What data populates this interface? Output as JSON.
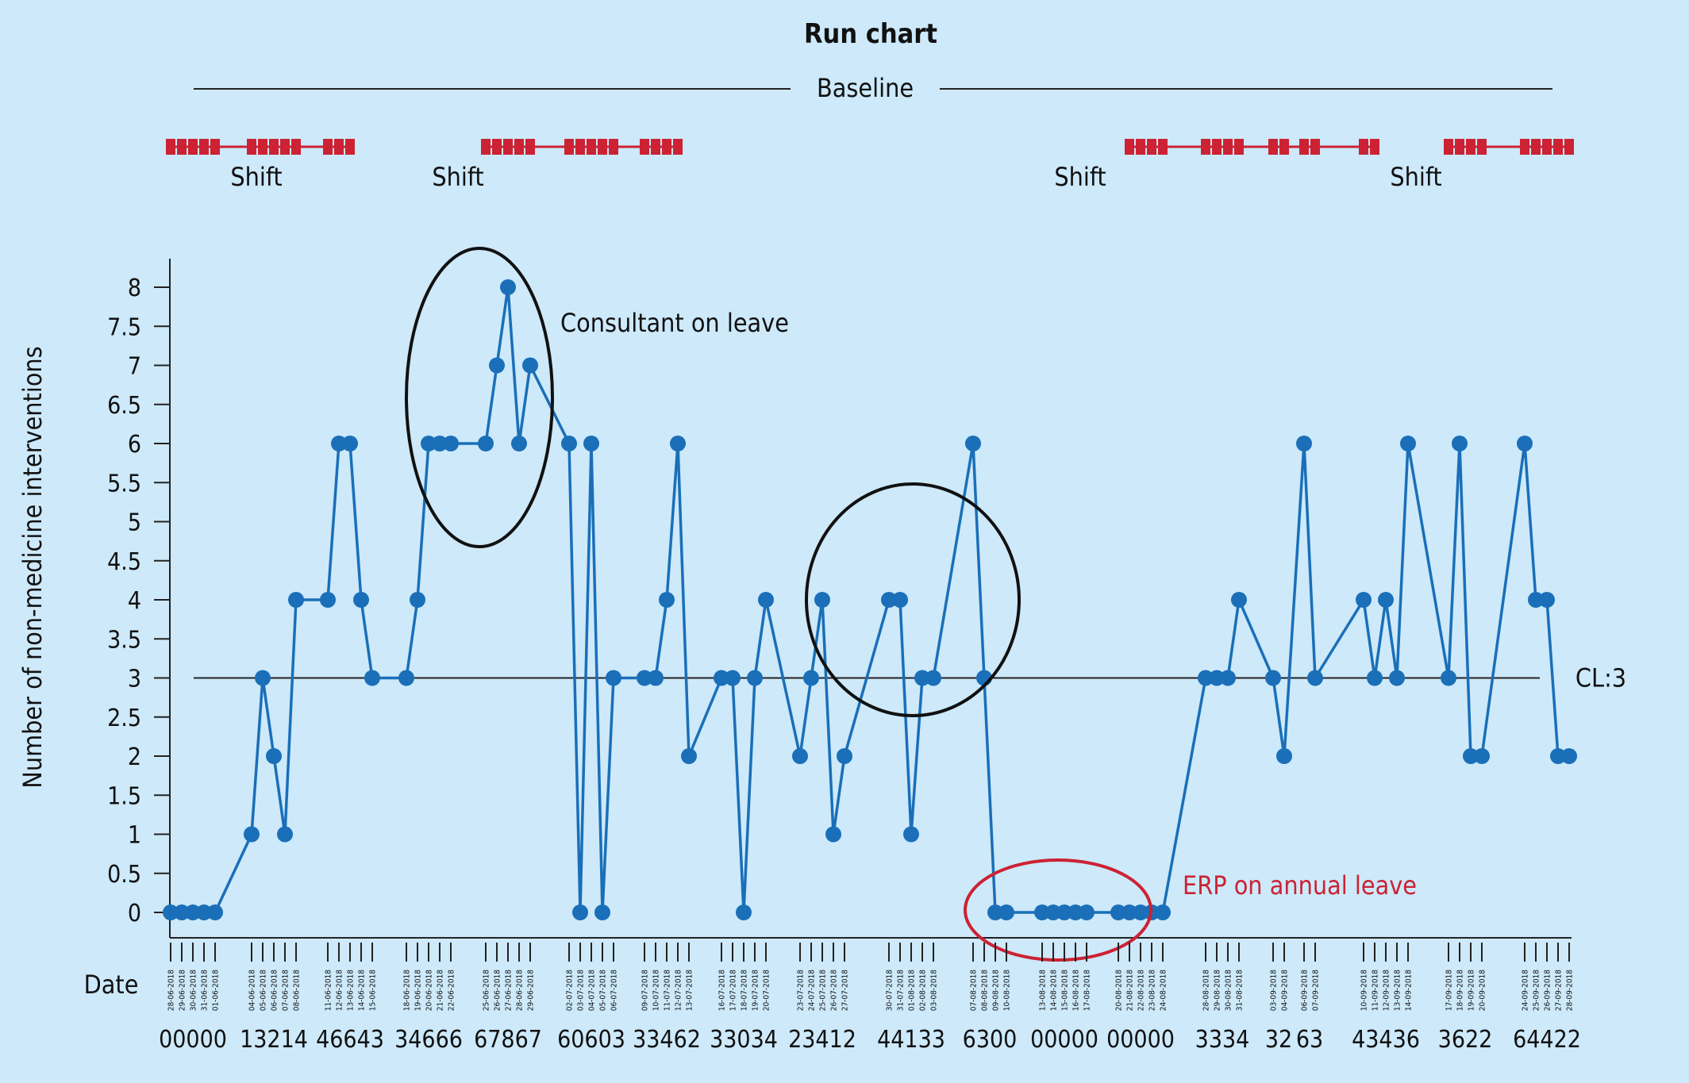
{
  "chart_data": {
    "type": "line",
    "title": "Run chart",
    "xlabel": "Date",
    "ylabel": "Number of non-medicine interventions",
    "ylim": [
      0,
      8
    ],
    "yticks": [
      "8",
      "7.5",
      "7",
      "6.5",
      "6",
      "5.5",
      "5",
      "4.5",
      "4",
      "3.5",
      "3",
      "2.5",
      "2",
      "1.5",
      "1",
      "0.5",
      "0"
    ],
    "baseline_label": "Baseline",
    "centerline": {
      "value": 3,
      "label": "CL:3"
    },
    "shift_label": "Shift",
    "annotations": {
      "consultant": "Consultant on leave",
      "erp": "ERP on annual leave"
    },
    "colors": {
      "line": "#1a6fb8",
      "point": "#1a6fb8",
      "shift": "#cc2233",
      "erp_circle": "#cc2233",
      "background": "#cde9fa"
    },
    "week_groups": [
      {
        "dates": [
          "28-06-2018",
          "29-06-2018",
          "30-06-2018",
          "31-06-2018",
          "01-06-2018"
        ],
        "values": "00000"
      },
      {
        "dates": [
          "04-06-2018",
          "05-06-2018",
          "06-06-2018",
          "07-06-2018",
          "08-06-2018"
        ],
        "values": "13214"
      },
      {
        "dates": [
          "11-06-2018",
          "12-06-2018",
          "13-06-2018",
          "14-06-2018",
          "15-06-2018"
        ],
        "values": "46643"
      },
      {
        "dates": [
          "18-06-2018",
          "19-06-2018",
          "20-06-2018",
          "21-06-2018",
          "22-06-2018"
        ],
        "values": "34666"
      },
      {
        "dates": [
          "25-06-2018",
          "26-06-2018",
          "27-06-2018",
          "28-06-2018",
          "29-06-2018"
        ],
        "values": "67867"
      },
      {
        "dates": [
          "02-07-2018",
          "03-07-2018",
          "04-07-2018",
          "05-07-2018",
          "06-07-2018"
        ],
        "values": "60603"
      },
      {
        "dates": [
          "09-07-2018",
          "10-07-2018",
          "11-07-2018",
          "12-07-2018",
          "13-07-2018"
        ],
        "values": "33462"
      },
      {
        "dates": [
          "16-07-2018",
          "17-07-2018",
          "18-07-2018",
          "19-07-2018",
          "20-07-2018"
        ],
        "values": "33034"
      },
      {
        "dates": [
          "23-07-2018",
          "24-07-2018",
          "25-07-2018",
          "26-07-2018",
          "27-07-2018"
        ],
        "values": "23412"
      },
      {
        "dates": [
          "30-07-2018",
          "31-07-2018",
          "01-08-2018",
          "02-08-2018",
          "03-08-2018"
        ],
        "values": "44133"
      },
      {
        "dates": [
          "07-08-2018",
          "08-08-2018",
          "09-08-2018",
          "10-08-2018"
        ],
        "values": "6300"
      },
      {
        "dates": [
          "13-08-2018",
          "14-08-2018",
          "15-08-2018",
          "16-08-2018",
          "17-08-2018"
        ],
        "values": "00000"
      },
      {
        "dates": [
          "20-08-2018",
          "21-08-2018",
          "22-08-2018",
          "23-08-2018",
          "24-08-2018"
        ],
        "values": "00000"
      },
      {
        "dates": [
          "28-08-2018",
          "29-08-2018",
          "30-08-2018",
          "31-08-2018"
        ],
        "values": "3334"
      },
      {
        "dates": [
          "03-09-2018",
          "04-09-2018"
        ],
        "values": "32"
      },
      {
        "dates": [
          "06-09-2018",
          "07-09-2018"
        ],
        "values": "63"
      },
      {
        "dates": [
          "10-09-2018",
          "11-09-2018",
          "12-09-2018",
          "13-09-2018",
          "14-09-2018"
        ],
        "values": "43436"
      },
      {
        "dates": [
          "17-09-2018",
          "18-09-2018",
          "19-09-2018",
          "20-09-2018"
        ],
        "values": "3622"
      },
      {
        "dates": [
          "24-09-2018",
          "25-09-2018",
          "26-09-2018",
          "27-09-2018",
          "28-09-2018"
        ],
        "values": "64422"
      }
    ]
  }
}
